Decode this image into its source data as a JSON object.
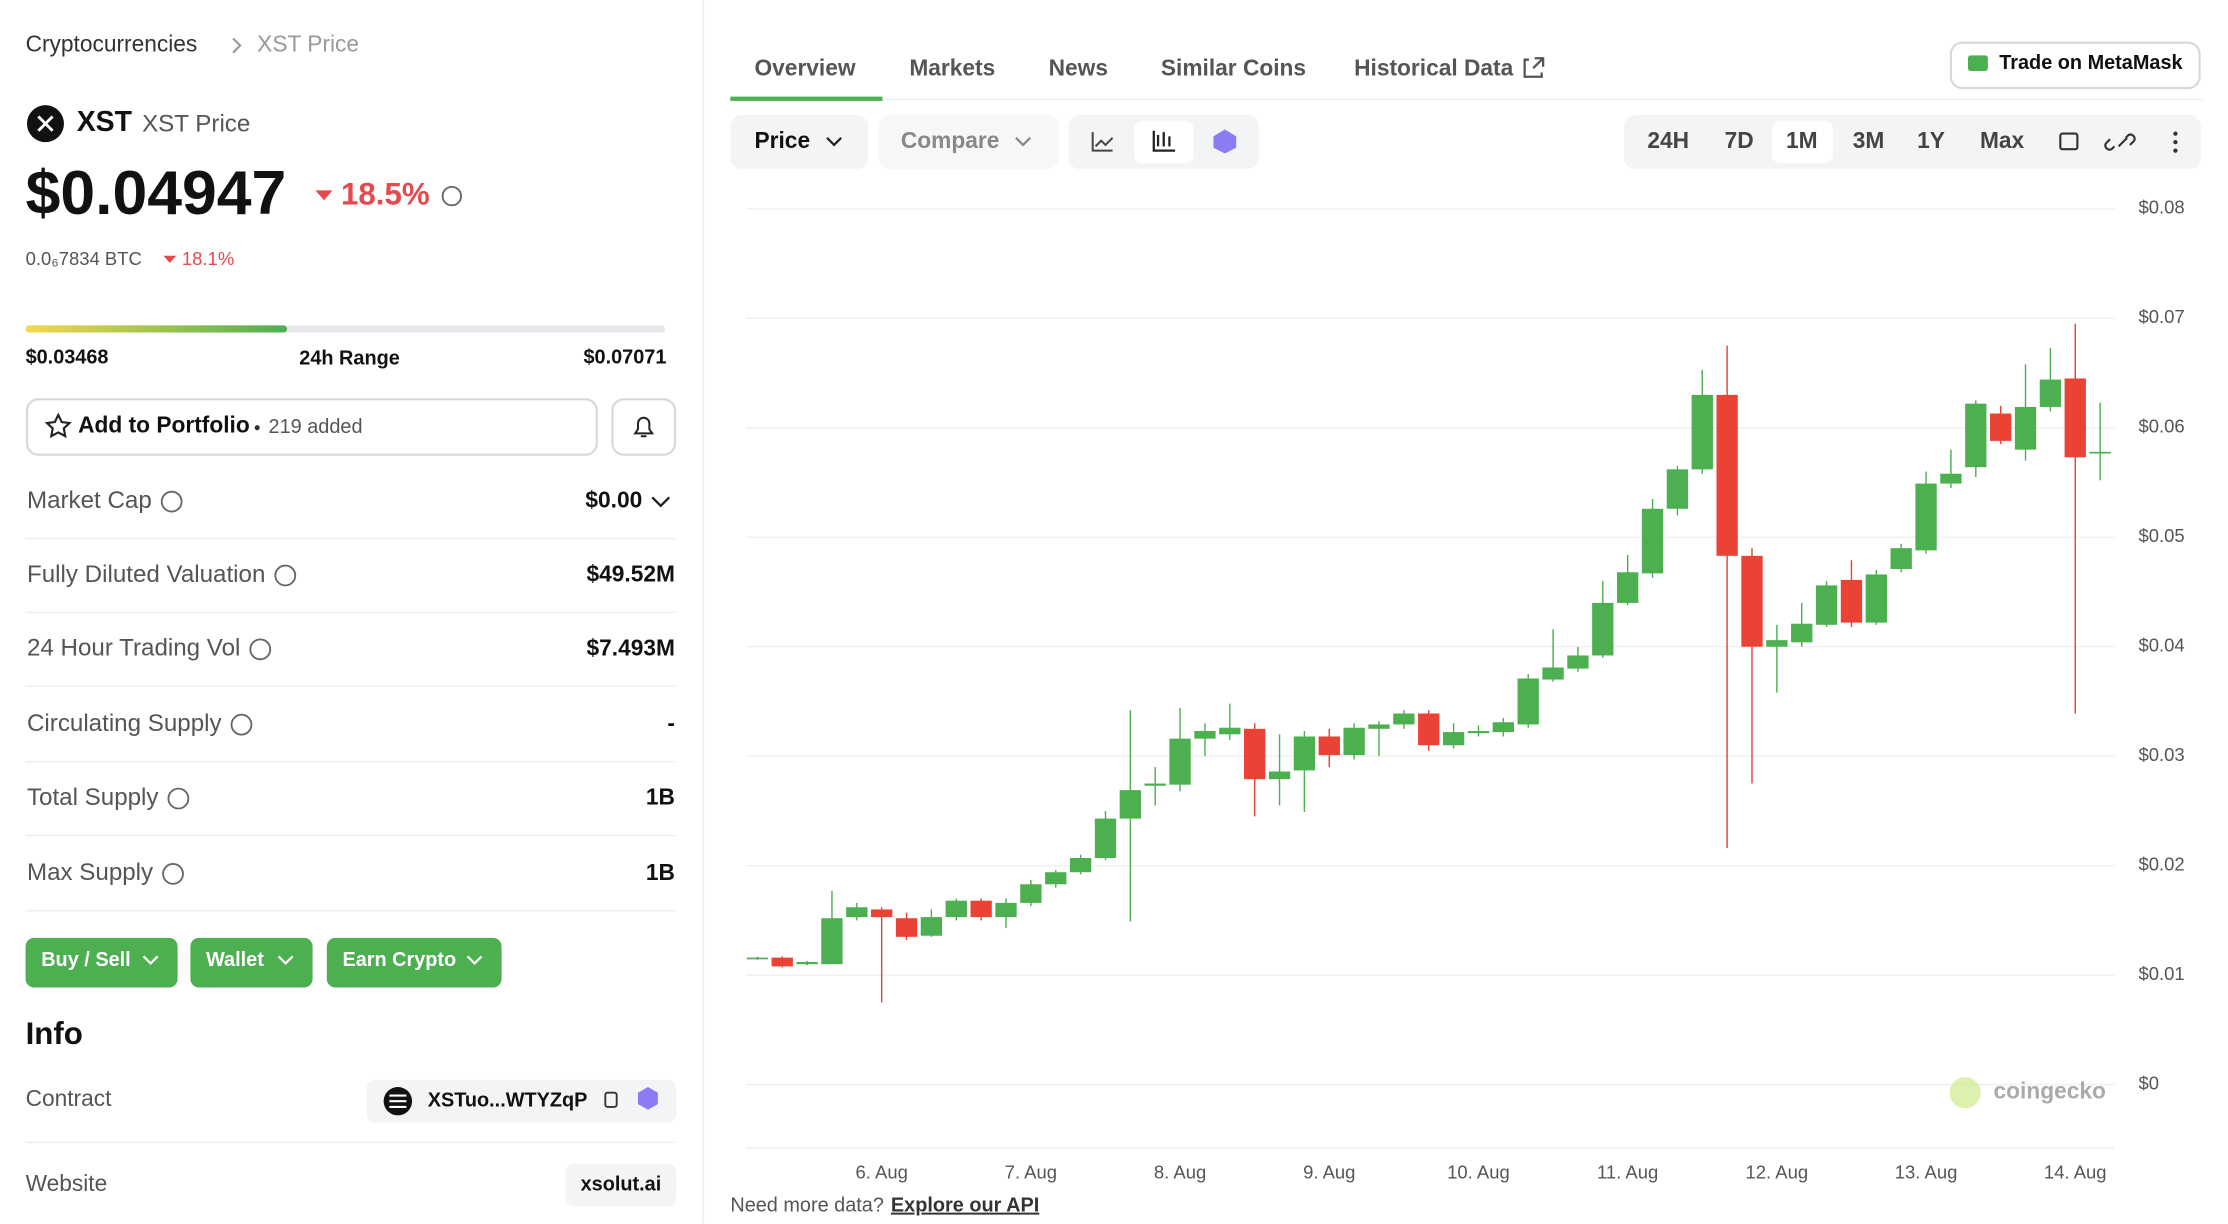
{
  "breadcrumb": [
    "Cryptocurrencies",
    "XST Price"
  ],
  "coin": {
    "symbol": "XST",
    "name": "XST Price",
    "price": "$0.04947",
    "change": "18.5%",
    "btc_price": "0.0₆7834 BTC",
    "btc_change": "18.1%"
  },
  "range": {
    "low": "$0.03468",
    "label": "24h Range",
    "high": "$0.07071"
  },
  "portfolio": {
    "button": "Add to Portfolio",
    "added": "219 added"
  },
  "stats": [
    {
      "label": "Market Cap",
      "value": "$0.00"
    },
    {
      "label": "Fully Diluted Valuation",
      "value": "$49.52M"
    },
    {
      "label": "24 Hour Trading Vol",
      "value": "$7.493M"
    },
    {
      "label": "Circulating Supply",
      "value": "-"
    },
    {
      "label": "Total Supply",
      "value": "1B"
    },
    {
      "label": "Max Supply",
      "value": "1B"
    }
  ],
  "actions": [
    "Buy / Sell",
    "Wallet",
    "Earn Crypto"
  ],
  "info": {
    "title": "Info",
    "rows": [
      {
        "label": "Contract",
        "value": "XSTuo...WTYZqP"
      },
      {
        "label": "Website",
        "value": "xsolut.ai"
      }
    ]
  },
  "tabs": [
    "Overview",
    "Markets",
    "News",
    "Similar Coins",
    "Historical Data"
  ],
  "trade_button": "Trade on MetaMask",
  "controls": {
    "price": "Price",
    "compare": "Compare",
    "ranges": [
      "24H",
      "7D",
      "1M",
      "3M",
      "1Y",
      "Max"
    ]
  },
  "chart_data": {
    "type": "candlestick",
    "watermark": "coingecko",
    "up_color": "#4caf50",
    "down_color": "#ea4335",
    "categories": [
      null,
      null,
      null,
      null,
      null,
      "6. Aug",
      null,
      null,
      null,
      null,
      null,
      "7. Aug",
      null,
      null,
      null,
      null,
      null,
      "8. Aug",
      null,
      null,
      null,
      null,
      null,
      "9. Aug",
      null,
      null,
      null,
      null,
      null,
      "10. Aug",
      null,
      null,
      null,
      null,
      null,
      "11. Aug",
      null,
      null,
      null,
      null,
      null,
      "12. Aug",
      null,
      null,
      null,
      null,
      null,
      "13. Aug",
      null,
      null,
      null,
      null,
      null,
      "14. Aug",
      null
    ],
    "open": [
      0.0116,
      0.0116,
      0.011,
      0.011,
      0.0153,
      0.016,
      0.0152,
      0.0136,
      0.0153,
      0.0168,
      0.0153,
      0.0166,
      0.0183,
      0.0194,
      0.0207,
      0.0243,
      0.0273,
      0.0274,
      0.0316,
      0.032,
      0.0325,
      0.0279,
      0.0287,
      0.0318,
      0.0301,
      0.0325,
      0.0329,
      0.0339,
      0.031,
      0.0321,
      0.0322,
      0.0329,
      0.037,
      0.038,
      0.0392,
      0.044,
      0.0467,
      0.0526,
      0.0562,
      0.063,
      0.0483,
      0.04,
      0.0404,
      0.042,
      0.0461,
      0.0422,
      0.0471,
      0.0488,
      0.0549,
      0.0564,
      0.0613,
      0.058,
      0.0619,
      0.0645,
      0.0578
    ],
    "high": [
      0.0117,
      0.0117,
      0.0113,
      0.0177,
      0.0166,
      0.0162,
      0.0157,
      0.016,
      0.017,
      0.017,
      0.017,
      0.0187,
      0.0196,
      0.021,
      0.025,
      0.0342,
      0.029,
      0.0344,
      0.033,
      0.0348,
      0.033,
      0.032,
      0.0323,
      0.0325,
      0.033,
      0.0332,
      0.0342,
      0.0342,
      0.033,
      0.0328,
      0.0335,
      0.0375,
      0.0416,
      0.04,
      0.046,
      0.0484,
      0.0535,
      0.0565,
      0.0653,
      0.0675,
      0.049,
      0.042,
      0.044,
      0.046,
      0.0479,
      0.047,
      0.0494,
      0.056,
      0.058,
      0.0625,
      0.062,
      0.0658,
      0.0673,
      0.0695,
      0.0623
    ],
    "low": [
      0.0114,
      0.0107,
      0.0109,
      0.011,
      0.015,
      0.0075,
      0.0132,
      0.0135,
      0.015,
      0.015,
      0.0143,
      0.0163,
      0.018,
      0.0192,
      0.0205,
      0.0149,
      0.0255,
      0.0268,
      0.03,
      0.0315,
      0.0245,
      0.0255,
      0.0249,
      0.029,
      0.0297,
      0.03,
      0.0325,
      0.0305,
      0.0307,
      0.0318,
      0.0318,
      0.0326,
      0.0368,
      0.0377,
      0.039,
      0.0438,
      0.0463,
      0.052,
      0.0558,
      0.0216,
      0.0275,
      0.0358,
      0.04,
      0.0418,
      0.0418,
      0.042,
      0.0468,
      0.0485,
      0.0545,
      0.0555,
      0.0585,
      0.057,
      0.0615,
      0.0339,
      0.0552
    ],
    "close": [
      0.0116,
      0.0108,
      0.0112,
      0.0152,
      0.0162,
      0.0153,
      0.0135,
      0.0153,
      0.0168,
      0.0153,
      0.0166,
      0.0183,
      0.0194,
      0.0207,
      0.0243,
      0.0269,
      0.0275,
      0.0316,
      0.0323,
      0.0326,
      0.0279,
      0.0286,
      0.0318,
      0.0301,
      0.0326,
      0.0329,
      0.0339,
      0.031,
      0.0322,
      0.0323,
      0.0331,
      0.0371,
      0.0381,
      0.0392,
      0.044,
      0.0468,
      0.0526,
      0.0562,
      0.063,
      0.0483,
      0.04,
      0.0406,
      0.0421,
      0.0456,
      0.0422,
      0.0466,
      0.049,
      0.0549,
      0.0558,
      0.0622,
      0.0588,
      0.0619,
      0.0644,
      0.0573,
      0.0578
    ],
    "ylim": [
      -0.0058,
      0.0809
    ],
    "yticks": [
      {
        "value": 0,
        "label": "$0"
      },
      {
        "value": 0.01,
        "label": "$0.01"
      },
      {
        "value": 0.02,
        "label": "$0.02"
      },
      {
        "value": 0.03,
        "label": "$0.03"
      },
      {
        "value": 0.04,
        "label": "$0.04"
      },
      {
        "value": 0.05,
        "label": "$0.05"
      },
      {
        "value": 0.06,
        "label": "$0.06"
      },
      {
        "value": 0.07,
        "label": "$0.07"
      },
      {
        "value": 0.08,
        "label": "$0.08"
      }
    ],
    "grid": true
  },
  "footer": {
    "text": "Need more data?",
    "link": "Explore our API"
  }
}
